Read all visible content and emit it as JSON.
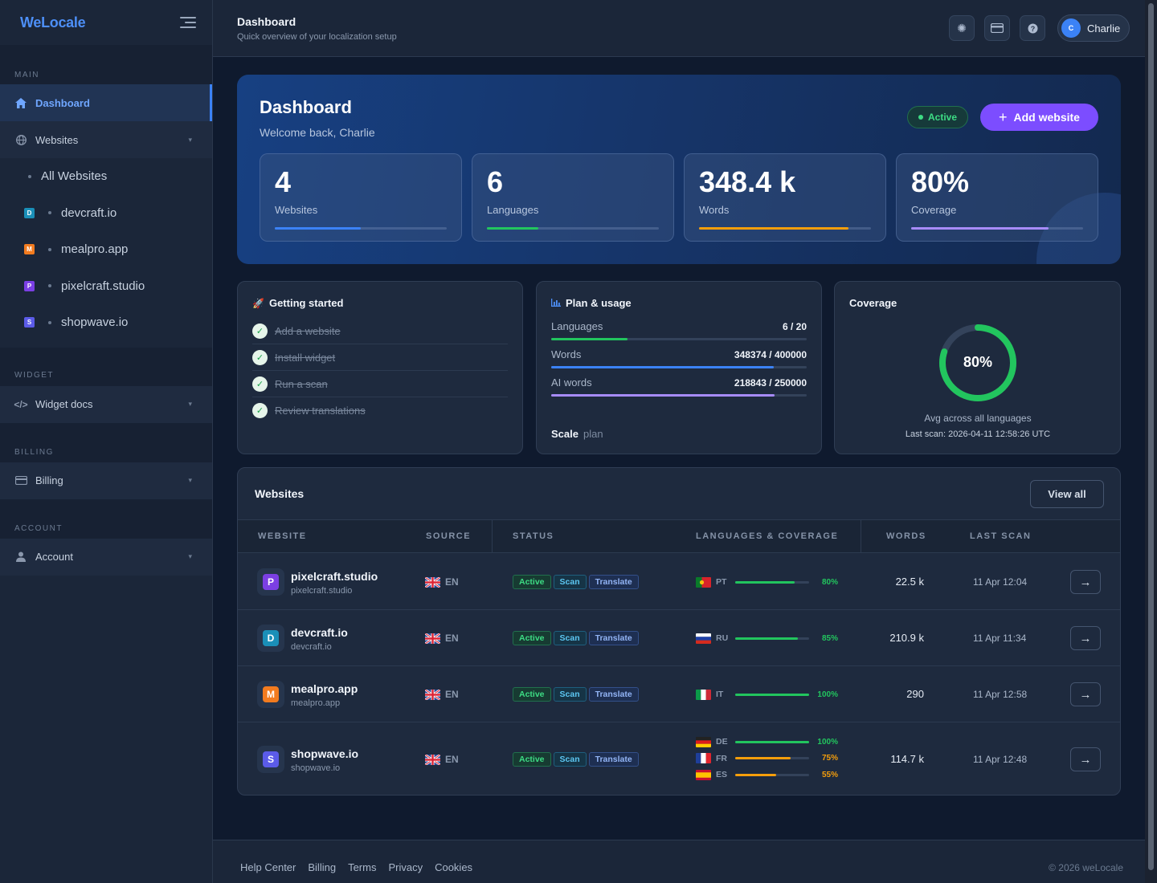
{
  "sidebar": {
    "brand": "WeLocale",
    "sections": {
      "main": "MAIN",
      "widget": "WIDGET",
      "billing": "BILLING",
      "account": "ACCOUNT"
    },
    "dashboard": "Dashboard",
    "websites": "Websites",
    "all_websites": "All Websites",
    "sites": [
      {
        "letter": "D",
        "name": "devcraft.io",
        "color": "#1a8fb8"
      },
      {
        "letter": "M",
        "name": "mealpro.app",
        "color": "#f27b1f"
      },
      {
        "letter": "P",
        "name": "pixelcraft.studio",
        "color": "#7b3fe4"
      },
      {
        "letter": "S",
        "name": "shopwave.io",
        "color": "#5b5be8"
      }
    ],
    "widget_docs": "Widget docs",
    "billing": "Billing",
    "account": "Account"
  },
  "header": {
    "title": "Dashboard",
    "subtitle": "Quick overview of your localization setup",
    "user_initial": "C",
    "user_name": "Charlie"
  },
  "hero": {
    "title": "Dashboard",
    "welcome": "Welcome back, Charlie",
    "status": "Active",
    "add_button": "Add website",
    "stats": [
      {
        "value": "4",
        "label": "Websites",
        "fill": 0.5,
        "color": "#3b82f6"
      },
      {
        "value": "6",
        "label": "Languages",
        "fill": 0.3,
        "color": "#22c55e"
      },
      {
        "value": "348.4 k",
        "label": "Words",
        "fill": 0.87,
        "color": "#f59e0b"
      },
      {
        "value": "80%",
        "label": "Coverage",
        "fill": 0.8,
        "color": "#a78bfa"
      }
    ]
  },
  "getting_started": {
    "title": "Getting started",
    "items": [
      "Add a website",
      "Install widget",
      "Run a scan",
      "Review translations"
    ]
  },
  "plan": {
    "title": "Plan & usage",
    "rows": [
      {
        "label": "Languages",
        "value": "6 / 20",
        "fill": 0.3,
        "color": "#22c55e"
      },
      {
        "label": "Words",
        "value": "348374 / 400000",
        "fill": 0.87,
        "color": "#3b82f6"
      },
      {
        "label": "AI words",
        "value": "218843 / 250000",
        "fill": 0.875,
        "color": "#a78bfa"
      }
    ],
    "plan_name": "Scale",
    "plan_suffix": "plan"
  },
  "coverage": {
    "title": "Coverage",
    "value": "80%",
    "fraction": 0.8,
    "subtitle": "Avg across all languages",
    "last_scan": "Last scan: 2026-04-11 12:58:26 UTC"
  },
  "websites_table": {
    "title": "Websites",
    "view_all": "View all",
    "columns": [
      "WEBSITE",
      "SOURCE",
      "STATUS",
      "LANGUAGES & COVERAGE",
      "WORDS",
      "LAST SCAN"
    ],
    "tags": {
      "active": "Active",
      "scan": "Scan",
      "translate": "Translate"
    },
    "rows": [
      {
        "letter": "P",
        "color": "#7b3fe4",
        "name": "pixelcraft.studio",
        "domain": "pixelcraft.studio",
        "source": "EN",
        "langs": [
          {
            "code": "PT",
            "pct": "80%",
            "fill": 0.8,
            "color": "#22c55e"
          }
        ],
        "words": "22.5 k",
        "last_scan": "11 Apr 12:04"
      },
      {
        "letter": "D",
        "color": "#1a8fb8",
        "name": "devcraft.io",
        "domain": "devcraft.io",
        "source": "EN",
        "langs": [
          {
            "code": "RU",
            "pct": "85%",
            "fill": 0.85,
            "color": "#22c55e"
          }
        ],
        "words": "210.9 k",
        "last_scan": "11 Apr 11:34"
      },
      {
        "letter": "M",
        "color": "#f27b1f",
        "name": "mealpro.app",
        "domain": "mealpro.app",
        "source": "EN",
        "langs": [
          {
            "code": "IT",
            "pct": "100%",
            "fill": 1.0,
            "color": "#22c55e"
          }
        ],
        "words": "290",
        "last_scan": "11 Apr 12:58"
      },
      {
        "letter": "S",
        "color": "#5b5be8",
        "name": "shopwave.io",
        "domain": "shopwave.io",
        "source": "EN",
        "langs": [
          {
            "code": "DE",
            "pct": "100%",
            "fill": 1.0,
            "color": "#22c55e"
          },
          {
            "code": "FR",
            "pct": "75%",
            "fill": 0.75,
            "color": "#f59e0b"
          },
          {
            "code": "ES",
            "pct": "55%",
            "fill": 0.55,
            "color": "#f59e0b"
          }
        ],
        "words": "114.7 k",
        "last_scan": "11 Apr 12:48"
      }
    ]
  },
  "footer": {
    "links": [
      "Help Center",
      "Billing",
      "Terms",
      "Privacy",
      "Cookies"
    ],
    "copyright": "© 2026 weLocale"
  }
}
